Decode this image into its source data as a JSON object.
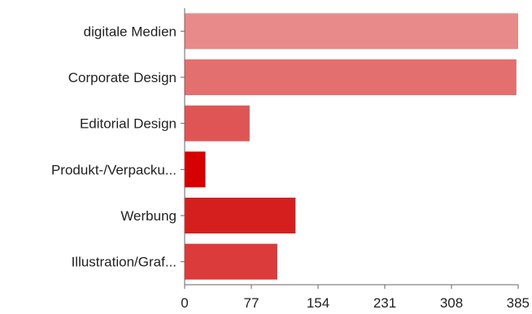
{
  "chart_data": {
    "type": "bar",
    "orientation": "horizontal",
    "categories": [
      "digitale Medien",
      "Corporate Design",
      "Editorial Design",
      "Produkt-/Verpacku...",
      "Werbung",
      "Illustration/Graf..."
    ],
    "values": [
      385,
      383,
      75,
      24,
      128,
      107
    ],
    "colors": [
      "#e88a8a",
      "#e46f6f",
      "#df5555",
      "#d60000",
      "#d51f1f",
      "#db3b3b"
    ],
    "xlim": [
      0,
      385
    ],
    "xticks": [
      0,
      77,
      154,
      231,
      308,
      385
    ],
    "grid": false,
    "title": "",
    "xlabel": "",
    "ylabel": ""
  }
}
